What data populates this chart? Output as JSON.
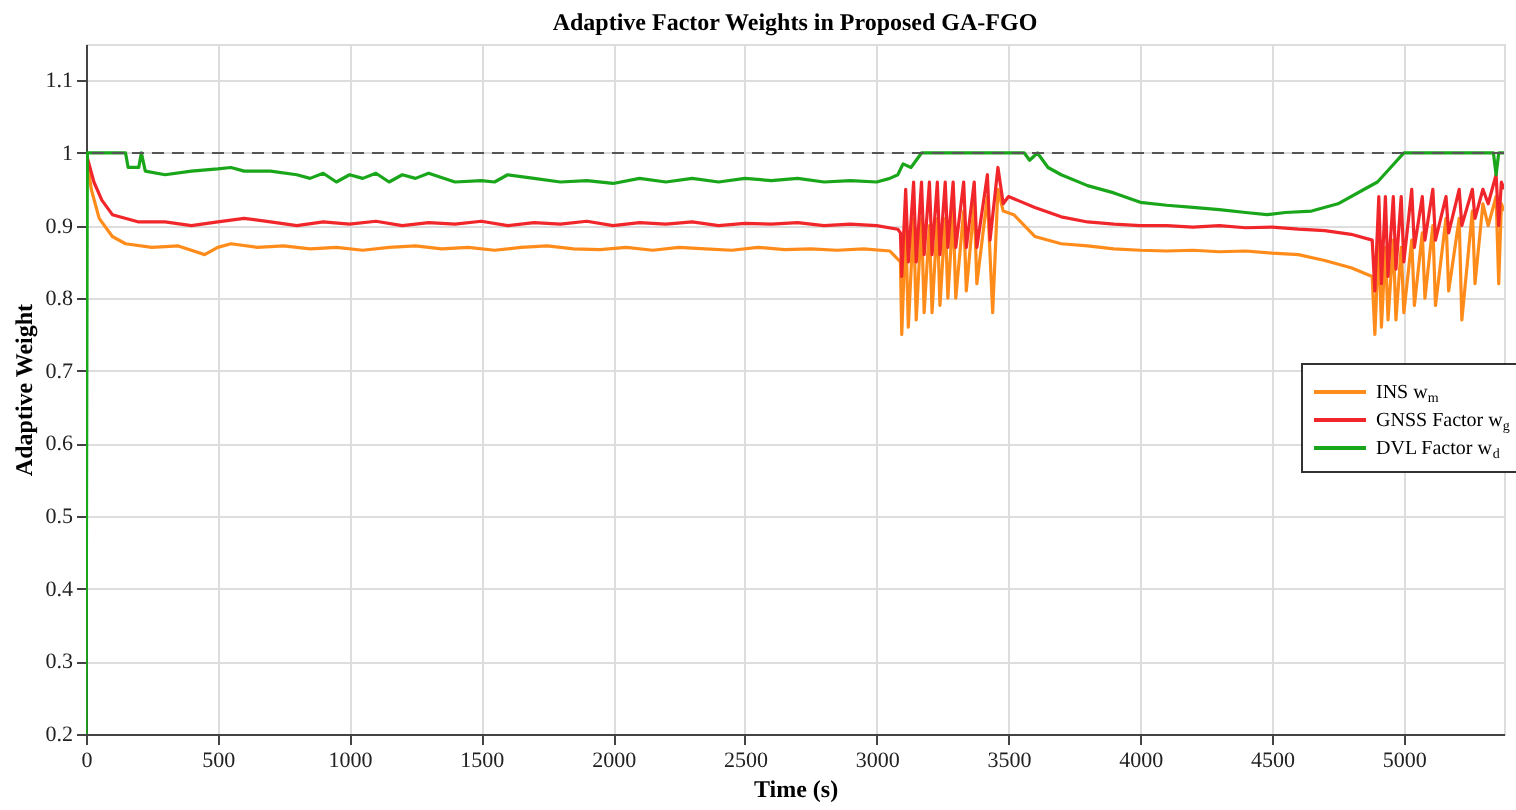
{
  "chart_data": {
    "type": "line",
    "title": "Adaptive Factor Weights in Proposed GA-FGO",
    "xlabel": "Time (s)",
    "ylabel": "Adaptive Weight",
    "xlim": [
      0,
      5380
    ],
    "ylim": [
      0.2,
      1.15
    ],
    "xticks": [
      0,
      500,
      1000,
      1500,
      2000,
      2500,
      3000,
      3500,
      4000,
      4500,
      5000
    ],
    "yticks": [
      0.2,
      0.3,
      0.4,
      0.5,
      0.6,
      0.7,
      0.8,
      0.9,
      1,
      1.1
    ],
    "grid": true,
    "legend": "right",
    "line_style": "solid",
    "marker": "none",
    "ref_lines": [
      {
        "axis": "y",
        "value": 1,
        "label": null,
        "color": "#555555",
        "line_style": "dashed"
      }
    ],
    "series": [
      {
        "name": "INS w$_{m}$",
        "color": "#ff8c1a",
        "x": [
          0,
          20,
          50,
          100,
          150,
          250,
          350,
          450,
          500,
          550,
          650,
          750,
          850,
          950,
          1050,
          1150,
          1250,
          1350,
          1450,
          1550,
          1650,
          1750,
          1850,
          1950,
          2050,
          2150,
          2250,
          2350,
          2450,
          2550,
          2650,
          2750,
          2850,
          2950,
          3050,
          3090,
          3095,
          3110,
          3120,
          3140,
          3150,
          3170,
          3180,
          3200,
          3210,
          3230,
          3240,
          3260,
          3270,
          3290,
          3300,
          3330,
          3340,
          3370,
          3380,
          3420,
          3440,
          3460,
          3480,
          3520,
          3600,
          3700,
          3800,
          3900,
          4000,
          4100,
          4200,
          4300,
          4400,
          4500,
          4600,
          4700,
          4800,
          4880,
          4890,
          4905,
          4915,
          4930,
          4940,
          4960,
          4970,
          4990,
          5000,
          5030,
          5040,
          5070,
          5080,
          5110,
          5120,
          5160,
          5170,
          5210,
          5220,
          5260,
          5270,
          5300,
          5320,
          5350,
          5360,
          5370,
          5380
        ],
        "values": [
          1.0,
          0.95,
          0.91,
          0.885,
          0.875,
          0.87,
          0.872,
          0.86,
          0.87,
          0.875,
          0.87,
          0.872,
          0.868,
          0.87,
          0.866,
          0.87,
          0.872,
          0.868,
          0.87,
          0.866,
          0.87,
          0.872,
          0.868,
          0.867,
          0.87,
          0.866,
          0.87,
          0.868,
          0.866,
          0.87,
          0.867,
          0.868,
          0.866,
          0.868,
          0.865,
          0.85,
          0.75,
          0.9,
          0.76,
          0.91,
          0.77,
          0.91,
          0.78,
          0.9,
          0.78,
          0.91,
          0.79,
          0.91,
          0.8,
          0.92,
          0.8,
          0.92,
          0.81,
          0.93,
          0.82,
          0.94,
          0.78,
          0.95,
          0.92,
          0.915,
          0.885,
          0.875,
          0.872,
          0.868,
          0.866,
          0.865,
          0.866,
          0.864,
          0.865,
          0.862,
          0.86,
          0.852,
          0.842,
          0.83,
          0.75,
          0.88,
          0.76,
          0.87,
          0.77,
          0.88,
          0.77,
          0.87,
          0.78,
          0.88,
          0.79,
          0.89,
          0.8,
          0.9,
          0.79,
          0.91,
          0.81,
          0.91,
          0.77,
          0.92,
          0.82,
          0.93,
          0.9,
          0.94,
          0.82,
          0.93,
          0.92
        ]
      },
      {
        "name": "GNSS Factor w$_{g}$",
        "color": "#f0262a",
        "x": [
          0,
          30,
          60,
          100,
          200,
          300,
          400,
          500,
          600,
          700,
          800,
          900,
          1000,
          1100,
          1200,
          1300,
          1400,
          1500,
          1600,
          1700,
          1800,
          1900,
          2000,
          2100,
          2200,
          2300,
          2400,
          2500,
          2600,
          2700,
          2800,
          2900,
          3000,
          3080,
          3090,
          3095,
          3110,
          3120,
          3140,
          3150,
          3170,
          3180,
          3200,
          3210,
          3230,
          3240,
          3260,
          3270,
          3290,
          3300,
          3330,
          3340,
          3370,
          3380,
          3420,
          3430,
          3460,
          3480,
          3500,
          3600,
          3700,
          3800,
          3900,
          4000,
          4100,
          4200,
          4300,
          4400,
          4500,
          4600,
          4700,
          4800,
          4880,
          4890,
          4905,
          4915,
          4930,
          4940,
          4960,
          4970,
          4990,
          5000,
          5030,
          5040,
          5070,
          5080,
          5110,
          5120,
          5160,
          5170,
          5210,
          5220,
          5260,
          5270,
          5300,
          5320,
          5350,
          5360,
          5370,
          5380
        ],
        "values": [
          1.0,
          0.96,
          0.935,
          0.915,
          0.905,
          0.905,
          0.9,
          0.905,
          0.91,
          0.905,
          0.9,
          0.905,
          0.902,
          0.906,
          0.9,
          0.904,
          0.902,
          0.906,
          0.9,
          0.904,
          0.902,
          0.906,
          0.9,
          0.904,
          0.902,
          0.905,
          0.9,
          0.903,
          0.902,
          0.904,
          0.9,
          0.902,
          0.9,
          0.895,
          0.89,
          0.83,
          0.95,
          0.85,
          0.96,
          0.85,
          0.96,
          0.86,
          0.96,
          0.86,
          0.96,
          0.86,
          0.96,
          0.87,
          0.96,
          0.87,
          0.96,
          0.87,
          0.96,
          0.87,
          0.97,
          0.88,
          0.98,
          0.93,
          0.94,
          0.925,
          0.912,
          0.905,
          0.902,
          0.9,
          0.9,
          0.898,
          0.9,
          0.897,
          0.898,
          0.895,
          0.893,
          0.888,
          0.88,
          0.81,
          0.94,
          0.82,
          0.94,
          0.83,
          0.94,
          0.84,
          0.94,
          0.85,
          0.95,
          0.87,
          0.94,
          0.88,
          0.95,
          0.88,
          0.94,
          0.89,
          0.95,
          0.9,
          0.95,
          0.91,
          0.95,
          0.93,
          0.97,
          0.9,
          0.96,
          0.95
        ]
      },
      {
        "name": "DVL Factor w$_{d}$",
        "color": "#1aa61a",
        "x": [
          0,
          5,
          150,
          160,
          200,
          210,
          225,
          300,
          400,
          500,
          550,
          600,
          700,
          800,
          850,
          900,
          950,
          1000,
          1050,
          1100,
          1150,
          1200,
          1250,
          1300,
          1400,
          1500,
          1550,
          1600,
          1700,
          1800,
          1900,
          2000,
          2100,
          2200,
          2300,
          2400,
          2500,
          2600,
          2700,
          2800,
          2900,
          3000,
          3050,
          3080,
          3100,
          3130,
          3150,
          3170,
          3560,
          3580,
          3610,
          3650,
          3700,
          3800,
          3900,
          4000,
          4100,
          4200,
          4300,
          4400,
          4480,
          4550,
          4650,
          4750,
          4850,
          4900,
          4950,
          5000,
          5340,
          5350,
          5360,
          5380
        ],
        "values": [
          0.2,
          1.0,
          1.0,
          0.98,
          0.98,
          1.0,
          0.975,
          0.97,
          0.975,
          0.978,
          0.98,
          0.975,
          0.975,
          0.97,
          0.965,
          0.972,
          0.96,
          0.97,
          0.965,
          0.972,
          0.96,
          0.97,
          0.965,
          0.972,
          0.96,
          0.962,
          0.96,
          0.97,
          0.965,
          0.96,
          0.962,
          0.958,
          0.965,
          0.96,
          0.965,
          0.96,
          0.965,
          0.962,
          0.965,
          0.96,
          0.962,
          0.96,
          0.965,
          0.97,
          0.985,
          0.98,
          0.99,
          1.0,
          1.0,
          0.99,
          1.0,
          0.98,
          0.97,
          0.955,
          0.945,
          0.932,
          0.928,
          0.925,
          0.922,
          0.918,
          0.915,
          0.918,
          0.92,
          0.93,
          0.95,
          0.96,
          0.98,
          1.0,
          1.0,
          0.97,
          1.0,
          1.0
        ]
      }
    ]
  }
}
